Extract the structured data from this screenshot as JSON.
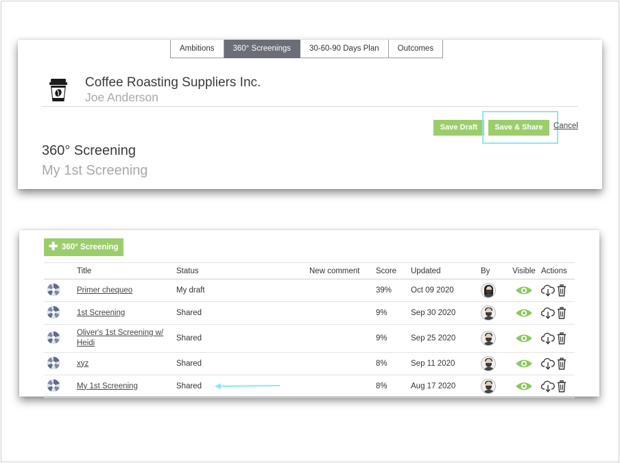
{
  "tabs": [
    {
      "label": "Ambitions",
      "active": false
    },
    {
      "label": "360° Screenings",
      "active": true
    },
    {
      "label": "30-60-90 Days Plan",
      "active": false
    },
    {
      "label": "Outcomes",
      "active": false
    }
  ],
  "header": {
    "company": "Coffee Roasting Suppliers Inc.",
    "person": "Joe Anderson",
    "logo_icon": "coffee-cup-icon"
  },
  "actions": {
    "save_draft": "Save Draft",
    "save_share": "Save & Share",
    "cancel": "Cancel"
  },
  "screening": {
    "title": "360° Screening",
    "name": "My 1st Screening"
  },
  "list": {
    "add_button": "360° Screening",
    "columns": {
      "title": "Title",
      "status": "Status",
      "new_comment": "New comment",
      "score": "Score",
      "updated": "Updated",
      "by": "By",
      "visible": "Visible",
      "actions": "Actions"
    },
    "rows": [
      {
        "title": "Primer chequeo",
        "status": "My draft",
        "new_comment": "",
        "score": "39%",
        "updated": "Oct 09 2020",
        "by": "female-avatar"
      },
      {
        "title": "1st Screening",
        "status": "Shared",
        "new_comment": "",
        "score": "9%",
        "updated": "Sep 30 2020",
        "by": "male-avatar"
      },
      {
        "title": "Oliver's 1st Screening w/ Heidi",
        "status": "Shared",
        "new_comment": "",
        "score": "9%",
        "updated": "Sep 25 2020",
        "by": "male-avatar"
      },
      {
        "title": "xyz",
        "status": "Shared",
        "new_comment": "",
        "score": "8%",
        "updated": "Sep 11 2020",
        "by": "male-avatar"
      },
      {
        "title": "My 1st Screening",
        "status": "Shared",
        "new_comment": "",
        "score": "8%",
        "updated": "Aug 17 2020",
        "by": "male-avatar"
      }
    ]
  },
  "colors": {
    "accent_green": "#9ccd6c",
    "active_tab": "#6b6e76",
    "highlight": "#8fe6ee"
  }
}
